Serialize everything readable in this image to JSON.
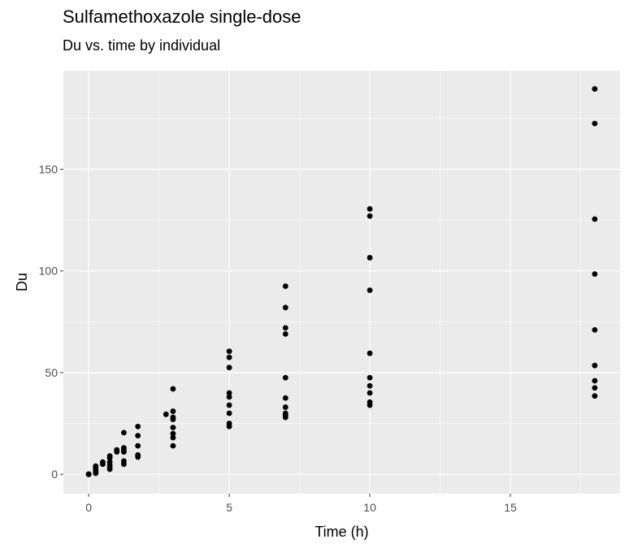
{
  "chart_data": {
    "type": "scatter",
    "title": "Sulfamethoxazole single-dose",
    "subtitle": "Du vs. time by individual",
    "xlabel": "Time (h)",
    "ylabel": "Du",
    "xlim": [
      -0.9,
      18.9
    ],
    "ylim": [
      -9.5,
      198.5
    ],
    "x_ticks": [
      0,
      5,
      10,
      15
    ],
    "y_ticks": [
      0,
      50,
      100,
      150
    ],
    "x_tick_labels": [
      "0",
      "5",
      "10",
      "15"
    ],
    "y_tick_labels": [
      "0",
      "50",
      "100",
      "150"
    ],
    "grid": true,
    "legend": "none",
    "colors": {
      "panel": "#ebebeb",
      "grid": "#ffffff",
      "point": "#000000"
    },
    "points": [
      [
        0,
        0
      ],
      [
        0,
        0
      ],
      [
        0,
        0
      ],
      [
        0,
        0
      ],
      [
        0,
        0
      ],
      [
        0.25,
        0.5
      ],
      [
        0.25,
        1
      ],
      [
        0.25,
        2
      ],
      [
        0.25,
        3
      ],
      [
        0.25,
        4
      ],
      [
        0.5,
        5
      ],
      [
        0.5,
        6
      ],
      [
        0.75,
        2.5
      ],
      [
        0.75,
        3.5
      ],
      [
        0.75,
        4.5
      ],
      [
        0.75,
        6
      ],
      [
        0.75,
        8
      ],
      [
        0.75,
        9
      ],
      [
        1,
        11
      ],
      [
        1,
        12
      ],
      [
        1.25,
        5
      ],
      [
        1.25,
        6.5
      ],
      [
        1.25,
        11
      ],
      [
        1.25,
        12
      ],
      [
        1.25,
        13
      ],
      [
        1.25,
        20.5
      ],
      [
        1.75,
        8.5
      ],
      [
        1.75,
        9.5
      ],
      [
        1.75,
        14
      ],
      [
        1.75,
        19
      ],
      [
        1.75,
        23.5
      ],
      [
        2.75,
        29.5
      ],
      [
        3,
        14
      ],
      [
        3,
        18
      ],
      [
        3,
        20
      ],
      [
        3,
        23
      ],
      [
        3,
        27
      ],
      [
        3,
        28
      ],
      [
        3,
        31
      ],
      [
        3,
        42
      ],
      [
        5,
        23.5
      ],
      [
        5,
        25
      ],
      [
        5,
        30
      ],
      [
        5,
        34
      ],
      [
        5,
        38
      ],
      [
        5,
        40
      ],
      [
        5,
        52.5
      ],
      [
        5,
        57.5
      ],
      [
        5,
        60.5
      ],
      [
        7,
        28
      ],
      [
        7,
        29
      ],
      [
        7,
        30
      ],
      [
        7,
        33
      ],
      [
        7,
        37.5
      ],
      [
        7,
        47.5
      ],
      [
        7,
        69
      ],
      [
        7,
        72
      ],
      [
        7,
        82
      ],
      [
        7,
        92.5
      ],
      [
        10,
        34
      ],
      [
        10,
        35.5
      ],
      [
        10,
        40
      ],
      [
        10,
        43.5
      ],
      [
        10,
        47.5
      ],
      [
        10,
        59.5
      ],
      [
        10,
        90.5
      ],
      [
        10,
        106.5
      ],
      [
        10,
        127
      ],
      [
        10,
        130.5
      ],
      [
        18,
        38.5
      ],
      [
        18,
        42.5
      ],
      [
        18,
        46
      ],
      [
        18,
        53.5
      ],
      [
        18,
        71
      ],
      [
        18,
        98.5
      ],
      [
        18,
        125.5
      ],
      [
        18,
        172.5
      ],
      [
        18,
        189.5
      ]
    ]
  }
}
